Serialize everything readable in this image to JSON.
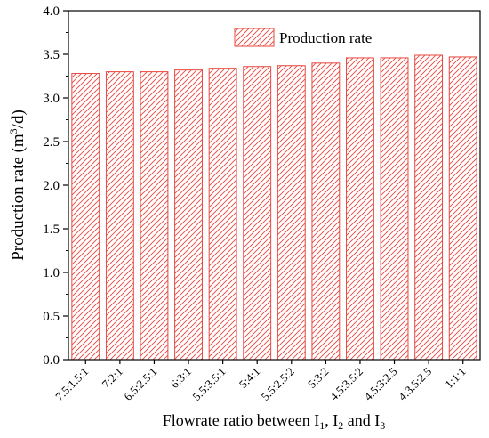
{
  "chart_data": {
    "type": "bar",
    "title": "",
    "xlabel_parts": [
      "Flowrate ratio between I",
      "1",
      ", I",
      "2",
      " and I",
      "3"
    ],
    "ylabel_parts": [
      "Production rate (m",
      "3",
      "/d)"
    ],
    "categories": [
      "7.5:1.5:1",
      "7:2:1",
      "6.5:2.5:1",
      "6:3:1",
      "5.5:3.5:1",
      "5:4:1",
      "5.5:2.5:2",
      "5:3:2",
      "4.5:3.5:2",
      "4.5:3:2.5",
      "4:3.5:2.5",
      "1:1:1"
    ],
    "series": [
      {
        "name": "Production rate",
        "values": [
          3.28,
          3.3,
          3.3,
          3.32,
          3.34,
          3.36,
          3.37,
          3.4,
          3.46,
          3.46,
          3.49,
          3.47
        ]
      }
    ],
    "ylim": [
      0.0,
      4.0
    ],
    "yticks": [
      "0.0",
      "0.5",
      "1.0",
      "1.5",
      "2.0",
      "2.5",
      "3.0",
      "3.5",
      "4.0"
    ],
    "grid": false,
    "legend_position": "top-right",
    "bar_pattern": "diagonal-hatch",
    "colors": {
      "bar": "#e8483f",
      "axis": "#000000"
    }
  }
}
